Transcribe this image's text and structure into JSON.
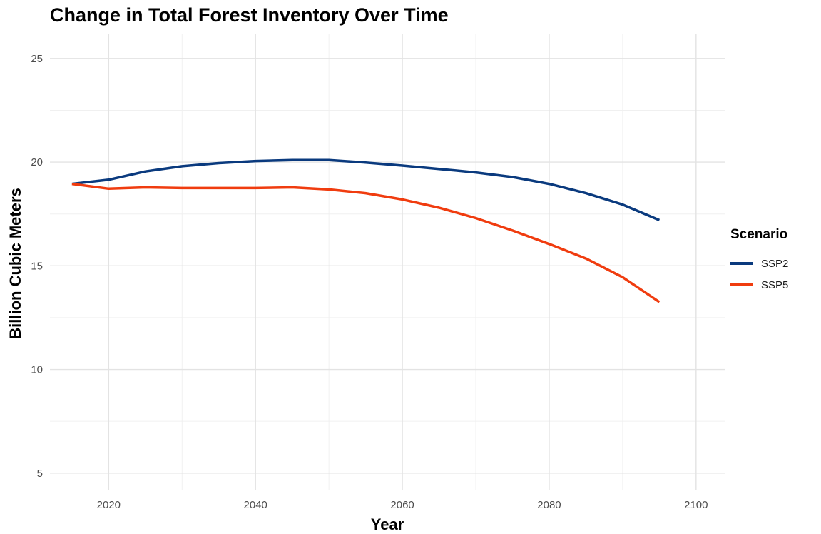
{
  "chart_data": {
    "type": "line",
    "title": "Change in Total Forest Inventory Over Time",
    "xlabel": "Year",
    "ylabel": "Billion Cubic Meters",
    "xlim": [
      2012,
      2104
    ],
    "ylim": [
      4.2,
      26.2
    ],
    "x_ticks": [
      2020,
      2040,
      2060,
      2080,
      2100
    ],
    "y_ticks": [
      5,
      10,
      15,
      20,
      25
    ],
    "grid": true,
    "legend_title": "Scenario",
    "legend_position": "right",
    "x": [
      2015,
      2020,
      2025,
      2030,
      2035,
      2040,
      2045,
      2050,
      2055,
      2060,
      2065,
      2070,
      2075,
      2080,
      2085,
      2090,
      2095
    ],
    "series": [
      {
        "name": "SSP2",
        "color": "#0a3a7e",
        "values": [
          18.95,
          19.15,
          19.55,
          19.8,
          19.95,
          20.05,
          20.1,
          20.1,
          19.98,
          19.83,
          19.67,
          19.5,
          19.28,
          18.95,
          18.5,
          17.95,
          17.2
        ]
      },
      {
        "name": "SSP5",
        "color": "#f03c0f",
        "values": [
          18.95,
          18.72,
          18.78,
          18.75,
          18.75,
          18.75,
          18.78,
          18.68,
          18.5,
          18.2,
          17.8,
          17.3,
          16.7,
          16.05,
          15.35,
          14.45,
          13.25
        ]
      }
    ]
  }
}
